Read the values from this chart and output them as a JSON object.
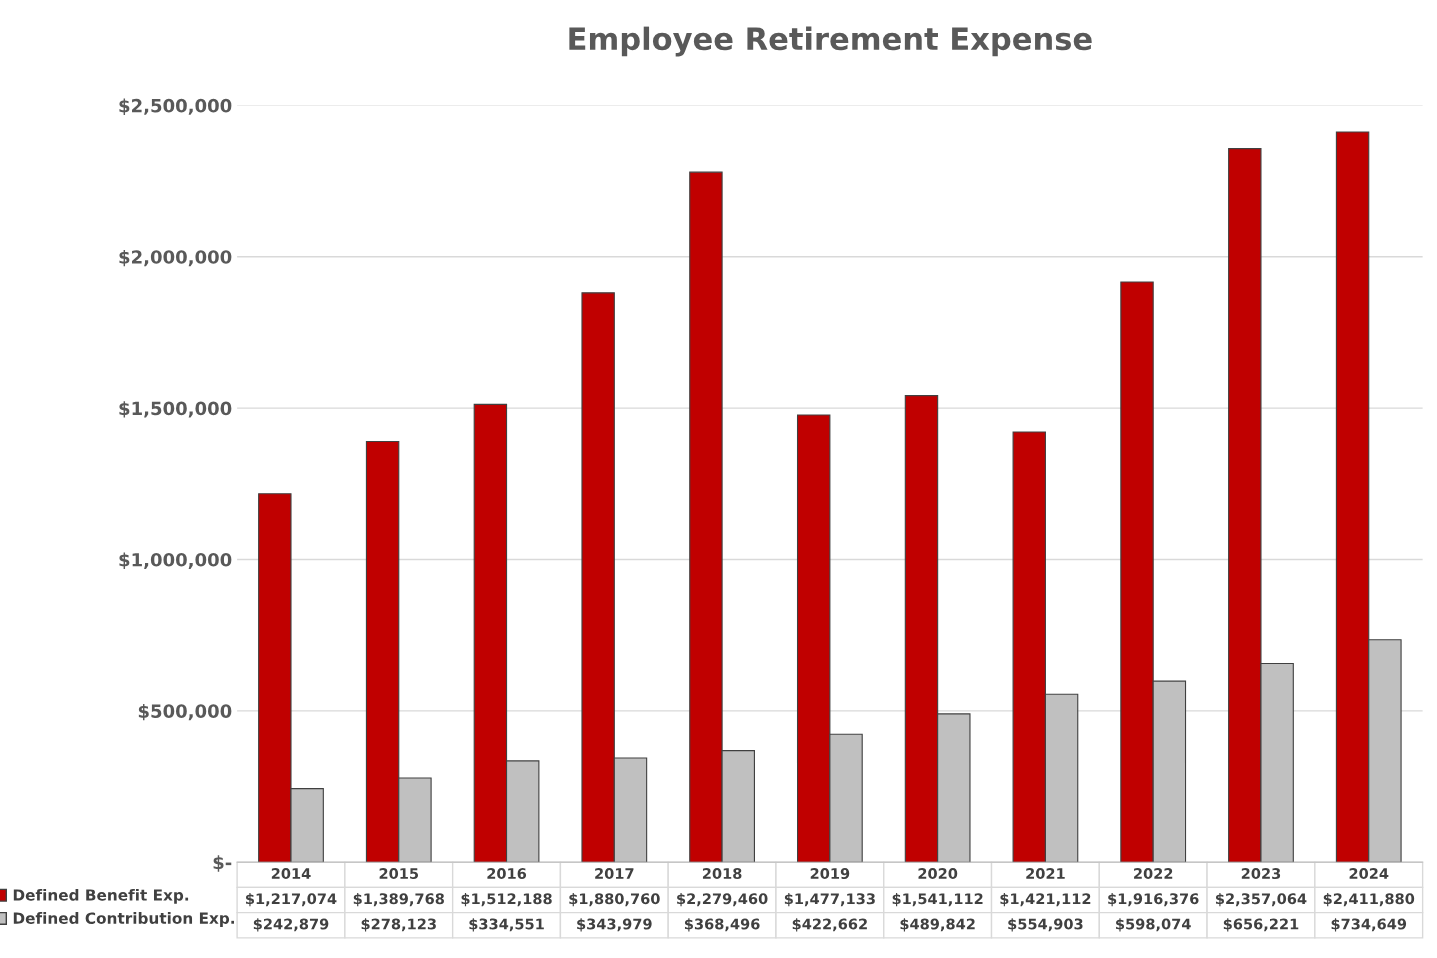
{
  "chart_data": {
    "type": "bar",
    "title": "Employee Retirement Expense",
    "categories": [
      "2014",
      "2015",
      "2016",
      "2017",
      "2018",
      "2019",
      "2020",
      "2021",
      "2022",
      "2023",
      "2024"
    ],
    "series": [
      {
        "name": "Defined Benefit Exp.",
        "color": "#c00000",
        "values": [
          1217074,
          1389768,
          1512188,
          1880760,
          2279460,
          1477133,
          1541112,
          1421112,
          1916376,
          2357064,
          2411880
        ],
        "value_labels": [
          "$1,217,074",
          "$1,389,768",
          "$1,512,188",
          "$1,880,760",
          "$2,279,460",
          "$1,477,133",
          "$1,541,112",
          "$1,421,112",
          "$1,916,376",
          "$2,357,064",
          "$2,411,880"
        ]
      },
      {
        "name": "Defined Contribution Exp.",
        "color": "#c0c0c0",
        "values": [
          242879,
          278123,
          334551,
          343979,
          368496,
          422662,
          489842,
          554903,
          598074,
          656221,
          734649
        ],
        "value_labels": [
          "$242,879",
          "$278,123",
          "$334,551",
          "$343,979",
          "$368,496",
          "$422,662",
          "$489,842",
          "$554,903",
          "$598,074",
          "$656,221",
          "$734,649"
        ]
      }
    ],
    "ylim": [
      0,
      2500000
    ],
    "yticks": [
      {
        "value": 0,
        "label": "$-"
      },
      {
        "value": 500000,
        "label": "$500,000"
      },
      {
        "value": 1000000,
        "label": "$1,000,000"
      },
      {
        "value": 1500000,
        "label": "$1,500,000"
      },
      {
        "value": 2000000,
        "label": "$2,000,000"
      },
      {
        "value": 2500000,
        "label": "$2,500,000"
      }
    ],
    "grid": "y",
    "legend": "bottom left"
  }
}
